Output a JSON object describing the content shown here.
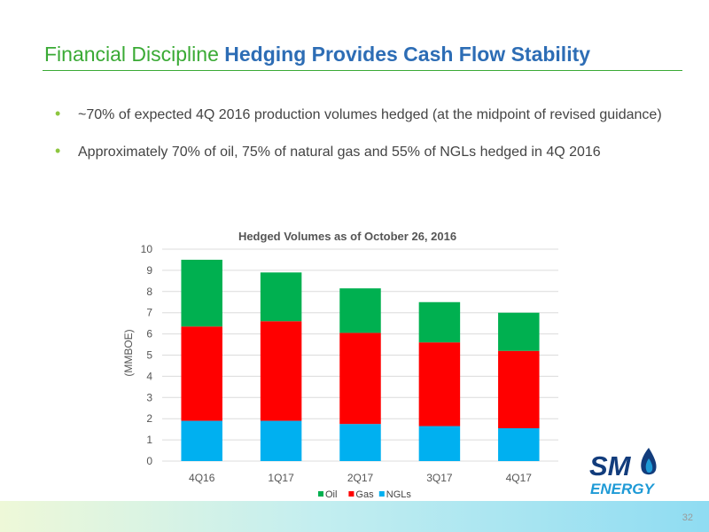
{
  "slide": {
    "title_part1": "Financial Discipline",
    "title_part2": "Hedging Provides Cash Flow Stability",
    "bullets": [
      "~70% of expected 4Q 2016 production volumes hedged (at the midpoint of revised guidance)",
      "Approximately 70% of oil, 75% of natural gas and 55% of NGLs hedged in 4Q 2016"
    ],
    "bullet_glyph": "•",
    "page_number": "32"
  },
  "logo": {
    "line1": "SM",
    "line2": "ENERGY",
    "primary_color": "#123c7c",
    "accent_color": "#1e9ad6"
  },
  "colors": {
    "title_green": "#3aaa35",
    "title_blue": "#2d6db5",
    "oil": "#00b050",
    "gas": "#ff0000",
    "ngls": "#00b0f0"
  },
  "chart_data": {
    "type": "bar",
    "stacked": true,
    "title": "Hedged Volumes as of October 26, 2016",
    "xlabel": "",
    "ylabel": "(MMBOE)",
    "ylim": [
      0,
      10
    ],
    "yticks": [
      "0",
      "1",
      "2",
      "3",
      "4",
      "5",
      "6",
      "7",
      "8",
      "9",
      "10"
    ],
    "categories": [
      "4Q16",
      "1Q17",
      "2Q17",
      "3Q17",
      "4Q17"
    ],
    "series": [
      {
        "name": "NGLs",
        "color": "#00b0f0",
        "values": [
          1.9,
          1.9,
          1.75,
          1.65,
          1.55
        ]
      },
      {
        "name": "Gas",
        "color": "#ff0000",
        "values": [
          4.45,
          4.7,
          4.3,
          3.95,
          3.65
        ]
      },
      {
        "name": "Oil",
        "color": "#00b050",
        "values": [
          3.15,
          2.3,
          2.1,
          1.9,
          1.8
        ]
      }
    ],
    "legend": {
      "position": "bottom",
      "order": [
        "Oil",
        "Gas",
        "NGLs"
      ]
    },
    "grid": true
  }
}
